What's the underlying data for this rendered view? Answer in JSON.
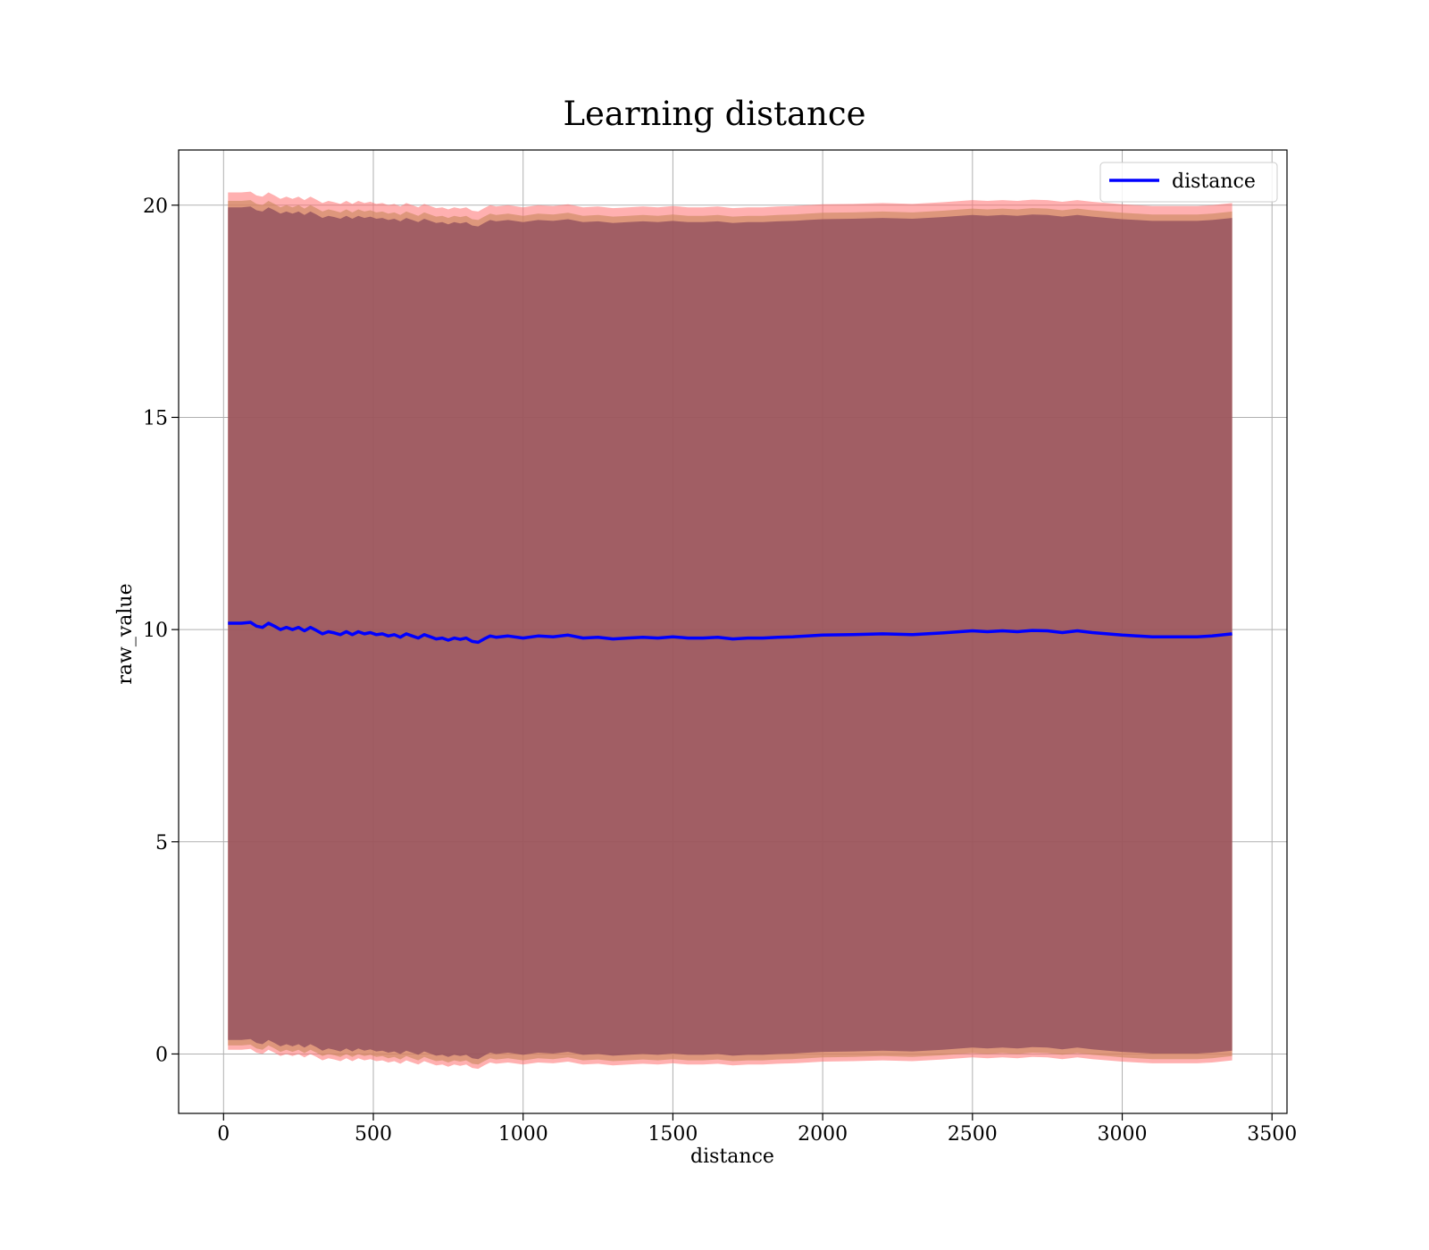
{
  "chart_data": {
    "type": "line",
    "title": "Learning distance",
    "xlabel": "distance",
    "ylabel": "raw_value",
    "xlim": [
      -150,
      3550
    ],
    "ylim": [
      -1.4,
      21.3
    ],
    "xticks": [
      0,
      500,
      1000,
      1500,
      2000,
      2500,
      3000,
      3500
    ],
    "yticks": [
      0,
      5,
      10,
      15,
      20
    ],
    "grid": true,
    "legend_position": "top-right",
    "colors": {
      "line": "#0000ff",
      "outer_band": "#ff6f6f",
      "mid_band": "#c8875a",
      "inner_band": "#8c4b5c",
      "grid": "#b0b0b0"
    },
    "series": [
      {
        "name": "distance",
        "x": [
          15,
          40,
          60,
          90,
          110,
          130,
          150,
          170,
          190,
          210,
          230,
          250,
          270,
          290,
          310,
          330,
          350,
          370,
          390,
          410,
          430,
          450,
          470,
          490,
          510,
          530,
          550,
          570,
          590,
          610,
          630,
          650,
          670,
          690,
          710,
          730,
          750,
          770,
          790,
          810,
          830,
          850,
          870,
          890,
          910,
          950,
          1000,
          1050,
          1100,
          1150,
          1200,
          1250,
          1300,
          1350,
          1400,
          1450,
          1500,
          1550,
          1600,
          1650,
          1700,
          1750,
          1800,
          1850,
          1900,
          1950,
          2000,
          2100,
          2200,
          2300,
          2400,
          2500,
          2550,
          2600,
          2650,
          2700,
          2750,
          2800,
          2850,
          2900,
          2950,
          3000,
          3050,
          3100,
          3150,
          3200,
          3250,
          3300,
          3367
        ],
        "y": [
          10.15,
          10.15,
          10.15,
          10.17,
          10.08,
          10.05,
          10.15,
          10.08,
          10.0,
          10.05,
          10.0,
          10.05,
          9.97,
          10.05,
          9.98,
          9.9,
          9.95,
          9.92,
          9.88,
          9.95,
          9.88,
          9.95,
          9.9,
          9.93,
          9.88,
          9.9,
          9.85,
          9.88,
          9.82,
          9.9,
          9.85,
          9.8,
          9.88,
          9.83,
          9.78,
          9.8,
          9.75,
          9.8,
          9.77,
          9.8,
          9.72,
          9.7,
          9.78,
          9.85,
          9.82,
          9.85,
          9.8,
          9.85,
          9.83,
          9.87,
          9.8,
          9.82,
          9.78,
          9.8,
          9.82,
          9.8,
          9.83,
          9.8,
          9.8,
          9.82,
          9.78,
          9.8,
          9.8,
          9.82,
          9.83,
          9.85,
          9.87,
          9.88,
          9.9,
          9.88,
          9.92,
          9.97,
          9.95,
          9.97,
          9.95,
          9.98,
          9.97,
          9.93,
          9.97,
          9.93,
          9.9,
          9.87,
          9.85,
          9.83,
          9.83,
          9.83,
          9.83,
          9.85,
          9.9
        ],
        "bands": [
          {
            "label": "outer",
            "lower_offset": -10.05,
            "upper_offset": 10.15
          },
          {
            "label": "mid",
            "lower_offset": -9.95,
            "upper_offset": 9.95
          },
          {
            "label": "inner",
            "lower_offset": -9.82,
            "upper_offset": 9.8
          }
        ]
      }
    ]
  }
}
